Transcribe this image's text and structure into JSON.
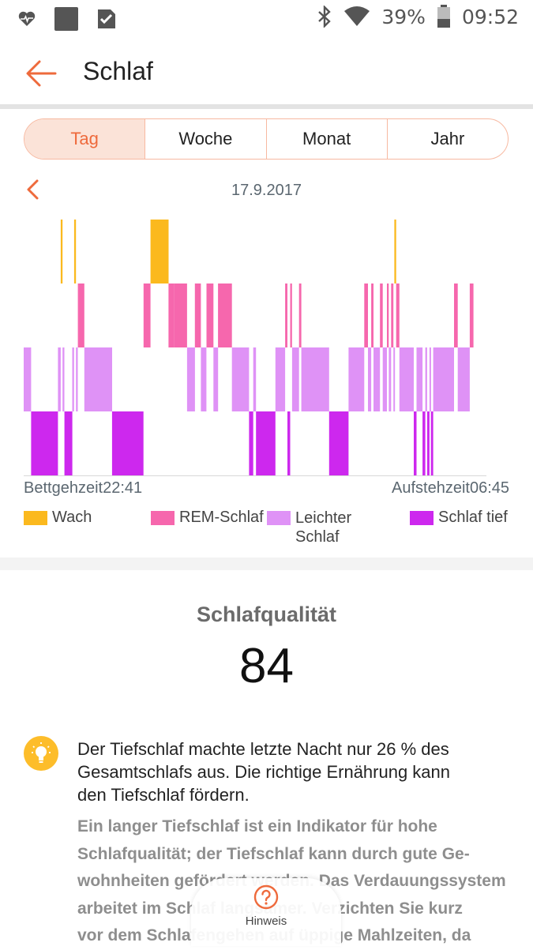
{
  "status_bar": {
    "battery": "39%",
    "time": "09:52",
    "icons": [
      "heartbeat-icon",
      "app-square-icon",
      "checklist-icon",
      "bluetooth-icon",
      "wifi-icon",
      "battery-icon"
    ]
  },
  "app_bar": {
    "back_icon": "arrow-left-icon",
    "title": "Schlaf"
  },
  "tabs": [
    {
      "label": "Tag",
      "active": true
    },
    {
      "label": "Woche",
      "active": false
    },
    {
      "label": "Monat",
      "active": false
    },
    {
      "label": "Jahr",
      "active": false
    }
  ],
  "date_nav": {
    "prev_icon": "chevron-left-icon",
    "date": "17.9.2017"
  },
  "chart_data": {
    "type": "bar",
    "chart_kind": "sleep-hypnogram",
    "x_start": "22:41",
    "x_end": "06:45",
    "stages": [
      "Wach",
      "REM-Schlaf",
      "Leichter Schlaf",
      "Schlaf tief"
    ],
    "colors": {
      "Wach": "#fbb91e",
      "REM-Schlaf": "#f667ad",
      "Leichter Schlaf": "#df92f6",
      "Schlaf tief": "#cd28ee"
    },
    "segments": [
      {
        "stage": "Leichter Schlaf",
        "start": 0.0,
        "end": 0.016
      },
      {
        "stage": "Schlaf tief",
        "start": 0.016,
        "end": 0.074
      },
      {
        "stage": "Leichter Schlaf",
        "start": 0.074,
        "end": 0.08
      },
      {
        "stage": "Wach",
        "start": 0.08,
        "end": 0.084
      },
      {
        "stage": "Leichter Schlaf",
        "start": 0.084,
        "end": 0.088
      },
      {
        "stage": "Schlaf tief",
        "start": 0.088,
        "end": 0.105
      },
      {
        "stage": "Leichter Schlaf",
        "start": 0.105,
        "end": 0.109
      },
      {
        "stage": "Wach",
        "start": 0.109,
        "end": 0.113
      },
      {
        "stage": "Leichter Schlaf",
        "start": 0.113,
        "end": 0.117
      },
      {
        "stage": "REM-Schlaf",
        "start": 0.117,
        "end": 0.131
      },
      {
        "stage": "Leichter Schlaf",
        "start": 0.131,
        "end": 0.191
      },
      {
        "stage": "Schlaf tief",
        "start": 0.191,
        "end": 0.259
      },
      {
        "stage": "REM-Schlaf",
        "start": 0.259,
        "end": 0.274
      },
      {
        "stage": "Wach",
        "start": 0.274,
        "end": 0.313
      },
      {
        "stage": "REM-Schlaf",
        "start": 0.313,
        "end": 0.325
      },
      {
        "stage": "REM-Schlaf",
        "start": 0.325,
        "end": 0.353
      },
      {
        "stage": "Leichter Schlaf",
        "start": 0.353,
        "end": 0.37
      },
      {
        "stage": "REM-Schlaf",
        "start": 0.37,
        "end": 0.383
      },
      {
        "stage": "Leichter Schlaf",
        "start": 0.383,
        "end": 0.395
      },
      {
        "stage": "REM-Schlaf",
        "start": 0.395,
        "end": 0.41
      },
      {
        "stage": "Leichter Schlaf",
        "start": 0.41,
        "end": 0.42
      },
      {
        "stage": "REM-Schlaf",
        "start": 0.42,
        "end": 0.45
      },
      {
        "stage": "Leichter Schlaf",
        "start": 0.45,
        "end": 0.487
      },
      {
        "stage": "Schlaf tief",
        "start": 0.487,
        "end": 0.496
      },
      {
        "stage": "Leichter Schlaf",
        "start": 0.496,
        "end": 0.502
      },
      {
        "stage": "Schlaf tief",
        "start": 0.502,
        "end": 0.544
      },
      {
        "stage": "Leichter Schlaf",
        "start": 0.544,
        "end": 0.565
      },
      {
        "stage": "REM-Schlaf",
        "start": 0.565,
        "end": 0.57
      },
      {
        "stage": "Schlaf tief",
        "start": 0.57,
        "end": 0.576
      },
      {
        "stage": "REM-Schlaf",
        "start": 0.576,
        "end": 0.58
      },
      {
        "stage": "Leichter Schlaf",
        "start": 0.58,
        "end": 0.595
      },
      {
        "stage": "REM-Schlaf",
        "start": 0.595,
        "end": 0.6
      },
      {
        "stage": "Leichter Schlaf",
        "start": 0.6,
        "end": 0.66
      },
      {
        "stage": "Schlaf tief",
        "start": 0.66,
        "end": 0.702
      },
      {
        "stage": "Leichter Schlaf",
        "start": 0.702,
        "end": 0.736
      },
      {
        "stage": "REM-Schlaf",
        "start": 0.736,
        "end": 0.744
      },
      {
        "stage": "Leichter Schlaf",
        "start": 0.744,
        "end": 0.751
      },
      {
        "stage": "REM-Schlaf",
        "start": 0.751,
        "end": 0.756
      },
      {
        "stage": "Leichter Schlaf",
        "start": 0.756,
        "end": 0.77
      },
      {
        "stage": "REM-Schlaf",
        "start": 0.77,
        "end": 0.776
      },
      {
        "stage": "Leichter Schlaf",
        "start": 0.776,
        "end": 0.785
      },
      {
        "stage": "REM-Schlaf",
        "start": 0.785,
        "end": 0.789
      },
      {
        "stage": "Leichter Schlaf",
        "start": 0.789,
        "end": 0.794
      },
      {
        "stage": "REM-Schlaf",
        "start": 0.794,
        "end": 0.799
      },
      {
        "stage": "Leichter Schlaf",
        "start": 0.799,
        "end": 0.801
      },
      {
        "stage": "Wach",
        "start": 0.801,
        "end": 0.805
      },
      {
        "stage": "REM-Schlaf",
        "start": 0.805,
        "end": 0.812
      },
      {
        "stage": "Leichter Schlaf",
        "start": 0.812,
        "end": 0.843
      },
      {
        "stage": "Schlaf tief",
        "start": 0.843,
        "end": 0.849
      },
      {
        "stage": "Leichter Schlaf",
        "start": 0.849,
        "end": 0.862
      },
      {
        "stage": "Schlaf tief",
        "start": 0.862,
        "end": 0.868
      },
      {
        "stage": "Leichter Schlaf",
        "start": 0.868,
        "end": 0.872
      },
      {
        "stage": "Schlaf tief",
        "start": 0.872,
        "end": 0.877
      },
      {
        "stage": "Leichter Schlaf",
        "start": 0.877,
        "end": 0.88
      },
      {
        "stage": "Schlaf tief",
        "start": 0.88,
        "end": 0.885
      },
      {
        "stage": "Leichter Schlaf",
        "start": 0.885,
        "end": 0.93
      },
      {
        "stage": "REM-Schlaf",
        "start": 0.93,
        "end": 0.938
      },
      {
        "stage": "Leichter Schlaf",
        "start": 0.938,
        "end": 0.964
      },
      {
        "stage": "REM-Schlaf",
        "start": 0.964,
        "end": 0.972
      }
    ]
  },
  "chart_labels": {
    "start": "Bettgehzeit22:41",
    "end": "Aufstehzeit06:45"
  },
  "legend": [
    {
      "label": "Wach",
      "color": "#fbb91e"
    },
    {
      "label": "REM-Schlaf",
      "color": "#f667ad"
    },
    {
      "label_lines": [
        "Leichter",
        "Schlaf"
      ],
      "color": "#df92f6"
    },
    {
      "label": "Schlaf tief",
      "color": "#cd28ee"
    }
  ],
  "quality": {
    "title": "Schlafqualität",
    "value": "84"
  },
  "tip": {
    "icon": "lightbulb-icon",
    "main_lines": [
      "Der Tiefschlaf machte letzte Nacht nur 26 % des",
      "Gesamtschlafs aus. Die richtige Ernährung kann",
      "den Tiefschlaf fördern."
    ],
    "detail_lines": [
      "Ein langer Tiefschlaf ist ein Indikator für hohe",
      "Schlafqualität; der Tiefschlaf kann durch gute Ge-",
      "wohnheiten gefördert werden. Das Verdauungssystem",
      "arbeitet im Schlaf langsamer. Verzichten Sie kurz",
      "vor dem Schlafengehen auf üppige Mahlzeiten, da"
    ]
  },
  "hint_button": {
    "icon": "question-circle-icon",
    "label": "Hinweis"
  },
  "accent_color": "#ee6a3c"
}
